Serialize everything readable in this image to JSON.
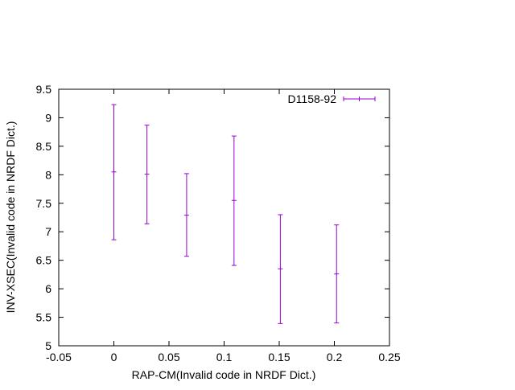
{
  "chart_data": {
    "type": "scatter",
    "xlabel": "RAP-CM(Invalid code in NRDF Dict.)",
    "ylabel": "INV-XSEC(Invalid code in NRDF Dict.)",
    "xlim": [
      -0.05,
      0.25
    ],
    "ylim": [
      5,
      9.5
    ],
    "xticks": [
      "-0.05",
      "0",
      "0.05",
      "0.1",
      "0.15",
      "0.2",
      "0.25"
    ],
    "yticks": [
      "5",
      "5.5",
      "6",
      "6.5",
      "7",
      "7.5",
      "8",
      "8.5",
      "9",
      "9.5"
    ],
    "grid": false,
    "legend_position": "top-right",
    "series": [
      {
        "name": "D1158-92",
        "color": "#9400d3",
        "points": [
          {
            "x": 0.0,
            "y": 8.05,
            "ylow": 6.86,
            "yhigh": 9.23
          },
          {
            "x": 0.03,
            "y": 8.01,
            "ylow": 7.14,
            "yhigh": 8.87
          },
          {
            "x": 0.066,
            "y": 7.29,
            "ylow": 6.57,
            "yhigh": 8.02
          },
          {
            "x": 0.109,
            "y": 7.55,
            "ylow": 6.41,
            "yhigh": 8.68
          },
          {
            "x": 0.151,
            "y": 6.35,
            "ylow": 5.39,
            "yhigh": 7.3
          },
          {
            "x": 0.202,
            "y": 6.26,
            "ylow": 5.4,
            "yhigh": 7.12
          }
        ]
      }
    ]
  }
}
